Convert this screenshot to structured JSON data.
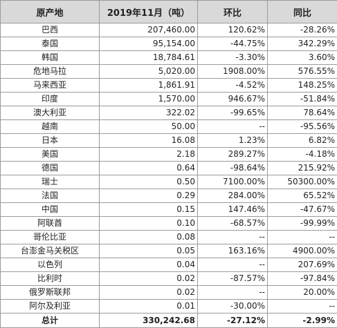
{
  "table": {
    "headers": [
      "原产地",
      "2019年11月（吨）",
      "环比",
      "同比"
    ],
    "rows": [
      {
        "origin": "巴西",
        "tons": "207,460.00",
        "mom": "120.62%",
        "yoy": "-28.26%"
      },
      {
        "origin": "泰国",
        "tons": "95,154.00",
        "mom": "-44.75%",
        "yoy": "342.29%"
      },
      {
        "origin": "韩国",
        "tons": "18,784.61",
        "mom": "-3.30%",
        "yoy": "3.60%"
      },
      {
        "origin": "危地马拉",
        "tons": "5,020.00",
        "mom": "1908.00%",
        "yoy": "576.55%"
      },
      {
        "origin": "马来西亚",
        "tons": "1,861.91",
        "mom": "-4.52%",
        "yoy": "148.25%"
      },
      {
        "origin": "印度",
        "tons": "1,570.00",
        "mom": "946.67%",
        "yoy": "-51.84%"
      },
      {
        "origin": "澳大利亚",
        "tons": "322.02",
        "mom": "-99.65%",
        "yoy": "78.64%"
      },
      {
        "origin": "越南",
        "tons": "50.00",
        "mom": "--",
        "yoy": "-95.56%"
      },
      {
        "origin": "日本",
        "tons": "16.08",
        "mom": "1.23%",
        "yoy": "6.82%"
      },
      {
        "origin": "美国",
        "tons": "2.18",
        "mom": "289.27%",
        "yoy": "-4.18%"
      },
      {
        "origin": "德国",
        "tons": "0.64",
        "mom": "-98.64%",
        "yoy": "215.92%"
      },
      {
        "origin": "瑞士",
        "tons": "0.50",
        "mom": "7100.00%",
        "yoy": "50300.00%"
      },
      {
        "origin": "法国",
        "tons": "0.29",
        "mom": "284.00%",
        "yoy": "65.52%"
      },
      {
        "origin": "中国",
        "tons": "0.15",
        "mom": "147.46%",
        "yoy": "-47.67%"
      },
      {
        "origin": "阿联酋",
        "tons": "0.10",
        "mom": "-68.57%",
        "yoy": "-99.99%"
      },
      {
        "origin": "哥伦比亚",
        "tons": "0.08",
        "mom": "--",
        "yoy": "--"
      },
      {
        "origin": "台澎金马关税区",
        "tons": "0.05",
        "mom": "163.16%",
        "yoy": "4900.00%"
      },
      {
        "origin": "以色列",
        "tons": "0.04",
        "mom": "--",
        "yoy": "207.69%"
      },
      {
        "origin": "比利时",
        "tons": "0.02",
        "mom": "-87.57%",
        "yoy": "-97.84%"
      },
      {
        "origin": "俄罗斯联邦",
        "tons": "0.02",
        "mom": "--",
        "yoy": "20.00%"
      },
      {
        "origin": "阿尔及利亚",
        "tons": "0.01",
        "mom": "-30.00%",
        "yoy": "--"
      }
    ],
    "total": {
      "origin": "总计",
      "tons": "330,242.68",
      "mom": "-27.12%",
      "yoy": "-2.99%"
    }
  }
}
